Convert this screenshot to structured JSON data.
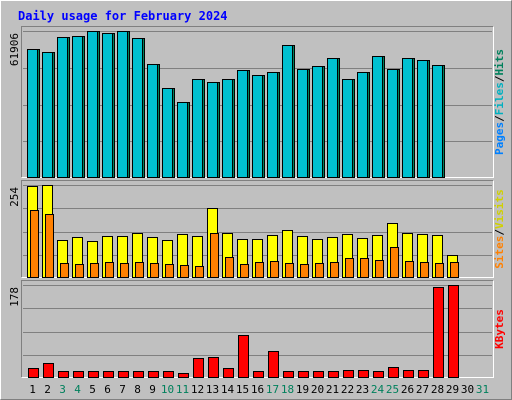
{
  "chart_data": {
    "type": "bar",
    "title": "Daily usage for February 2024",
    "categories": [
      "1",
      "2",
      "3",
      "4",
      "5",
      "6",
      "7",
      "8",
      "9",
      "10",
      "11",
      "12",
      "13",
      "14",
      "15",
      "16",
      "17",
      "18",
      "19",
      "20",
      "21",
      "22",
      "23",
      "24",
      "25",
      "26",
      "27",
      "28",
      "29",
      "30",
      "31"
    ],
    "weekend_days": [
      "3",
      "4",
      "10",
      "11",
      "17",
      "18",
      "24",
      "25",
      "31"
    ],
    "panels": [
      {
        "id": "top",
        "max_label": "61906",
        "ylim": [
          0,
          61906
        ],
        "legend": [
          "Pages",
          "Files",
          "Hits"
        ],
        "series": [
          {
            "name": "Hits",
            "color": "#00805c",
            "values": [
              54200,
              52900,
              59300,
              59900,
              61906,
              61200,
              61900,
              58900,
              48100,
              37900,
              32200,
              41800,
              40400,
              41800,
              45300,
              43200,
              44600,
              55800,
              45700,
              47200,
              50500,
              41600,
              44600,
              51200,
              45800,
              50700,
              49700,
              47700,
              null,
              null,
              null
            ]
          },
          {
            "name": "Files",
            "color": "#00c0d0",
            "values": [
              54200,
              52900,
              59300,
              59900,
              61906,
              61200,
              61900,
              58900,
              48100,
              37900,
              32200,
              41800,
              40400,
              41800,
              45300,
              43200,
              44600,
              55800,
              45700,
              47200,
              50500,
              41600,
              44600,
              51200,
              45800,
              50700,
              49700,
              47700,
              null,
              null,
              null
            ]
          }
        ]
      },
      {
        "id": "middle",
        "max_label": "254",
        "ylim": [
          0,
          254
        ],
        "legend": [
          "Sites",
          "Visits"
        ],
        "series": [
          {
            "name": "Visits",
            "color": "#ffff00",
            "values": [
              250,
              254,
              104,
              112,
              100,
              114,
              115,
              123,
              112,
              103,
              120,
              115,
              192,
              123,
              106,
              107,
              117,
              130,
              114,
              106,
              112,
              120,
              110,
              118,
              150,
              122,
              121,
              118,
              62,
              null,
              null
            ]
          },
          {
            "name": "Sites",
            "color": "#ff8000",
            "values": [
              187,
              176,
              42,
              39,
              42,
              43,
              42,
              43,
              42,
              38,
              36,
              33,
              122,
              56,
              38,
              45,
              47,
              41,
              38,
              41,
              45,
              54,
              55,
              50,
              85,
              46,
              44,
              41,
              43,
              null,
              null
            ]
          }
        ]
      },
      {
        "id": "bottom",
        "max_label": "178",
        "ylim": [
          0,
          178
        ],
        "legend": [
          "KBytes"
        ],
        "series": [
          {
            "name": "KBytes",
            "color": "#ff0000",
            "values": [
              20,
              28,
              13,
              14,
              14,
              14,
              14,
              14,
              14,
              14,
              10,
              38,
              40,
              20,
              82,
              14,
              52,
              13,
              13,
              14,
              14,
              15,
              15,
              14,
              22,
              15,
              15,
              175,
              178,
              null,
              null
            ]
          }
        ]
      }
    ],
    "legend_colors": {
      "Pages": "#0080ff",
      "Files": "#00b0c0",
      "Hits": "#00805c",
      "Sites": "#ff8000",
      "Visits": "#d0d000",
      "KBytes": "#ff0000",
      "separator": "#000000",
      "weekday_label": "#000000",
      "weekend_label": "#00805c",
      "title": "#0000ff"
    }
  }
}
